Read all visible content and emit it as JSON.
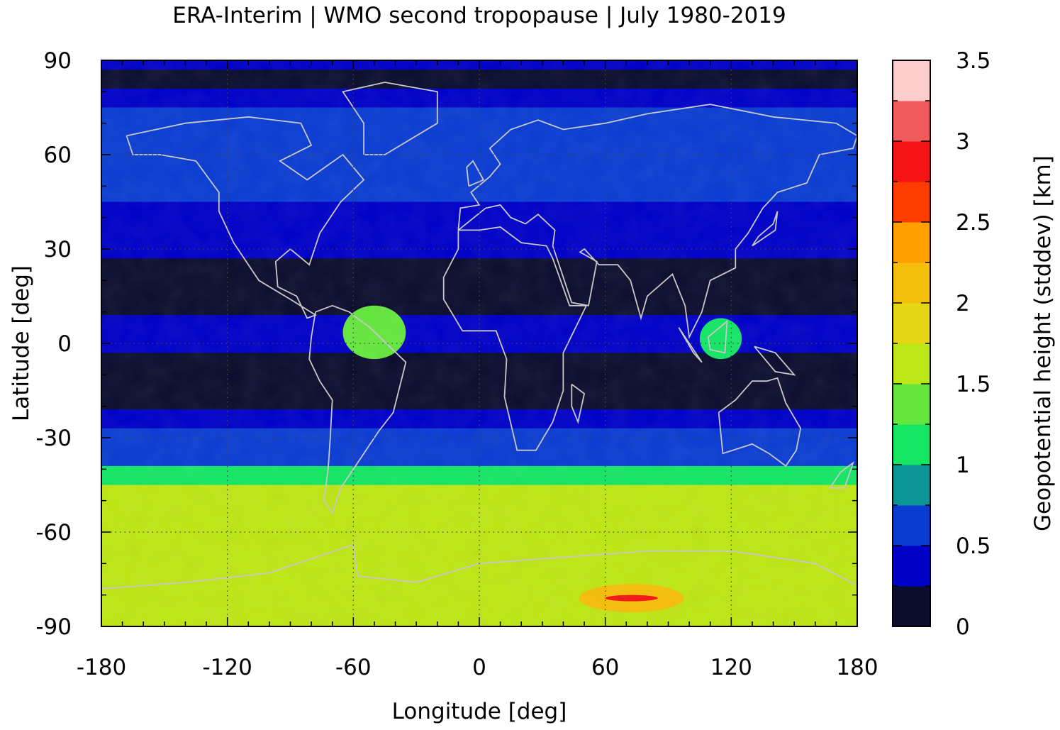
{
  "chart_data": {
    "type": "heatmap",
    "title": "ERA-Interim | WMO second tropopause | July 1980-2019",
    "xlabel": "Longitude [deg]",
    "ylabel": "Latitude [deg]",
    "xlim": [
      -180,
      180
    ],
    "ylim": [
      -90,
      90
    ],
    "x_ticks": [
      -180,
      -120,
      -60,
      0,
      60,
      120,
      180
    ],
    "y_ticks": [
      90,
      60,
      30,
      0,
      -30,
      -60,
      -90
    ],
    "x_tick_labels": [
      "-180",
      "-120",
      "-60",
      "0",
      "60",
      "120",
      "180"
    ],
    "y_tick_labels": [
      "90",
      "60",
      "30",
      "0",
      "-30",
      "-60",
      "-90"
    ],
    "grid": true,
    "colorbar": {
      "label": "Geopotential height (stddev) [km]",
      "range": [
        0,
        3.5
      ],
      "step": 0.25,
      "tick_values": [
        0,
        0.5,
        1,
        1.5,
        2,
        2.5,
        3,
        3.5
      ],
      "tick_labels": [
        "0",
        "0.5",
        "1",
        "1.5",
        "2",
        "2.5",
        "3",
        "3.5"
      ],
      "colors": [
        "#0c0c2e",
        "#0000c8",
        "#0a3cd2",
        "#0a9696",
        "#14e664",
        "#64e63c",
        "#bee614",
        "#e6d714",
        "#f5be0a",
        "#ffa000",
        "#ff3c00",
        "#f51414",
        "#f05a5a",
        "#ffcccc"
      ]
    },
    "zonal_mean_profile": {
      "lat": [
        90,
        84,
        78,
        72,
        66,
        60,
        54,
        48,
        42,
        36,
        30,
        24,
        18,
        12,
        6,
        0,
        -6,
        -12,
        -18,
        -24,
        -30,
        -36,
        -42,
        -48,
        -54,
        -60,
        -66,
        -72,
        -78,
        -84,
        -90
      ],
      "value": [
        0.35,
        0.12,
        0.45,
        0.6,
        0.6,
        0.6,
        0.6,
        0.55,
        0.45,
        0.4,
        0.35,
        0.12,
        0.1,
        0.1,
        0.4,
        0.3,
        0.2,
        0.1,
        0.1,
        0.3,
        0.6,
        0.7,
        1.1,
        1.5,
        1.6,
        1.65,
        1.6,
        1.55,
        1.6,
        1.7,
        1.6
      ]
    },
    "annotations": [
      {
        "text": "",
        "lon": [
          -65,
          -35
        ],
        "lat": [
          -5,
          12
        ],
        "value": 1.3
      },
      {
        "text": "",
        "lon": [
          105,
          125
        ],
        "lat": [
          -5,
          8
        ],
        "value": 1.2
      },
      {
        "text": "",
        "lon": [
          60,
          85
        ],
        "lat": [
          -82,
          -80
        ],
        "value": 2.8
      }
    ]
  }
}
